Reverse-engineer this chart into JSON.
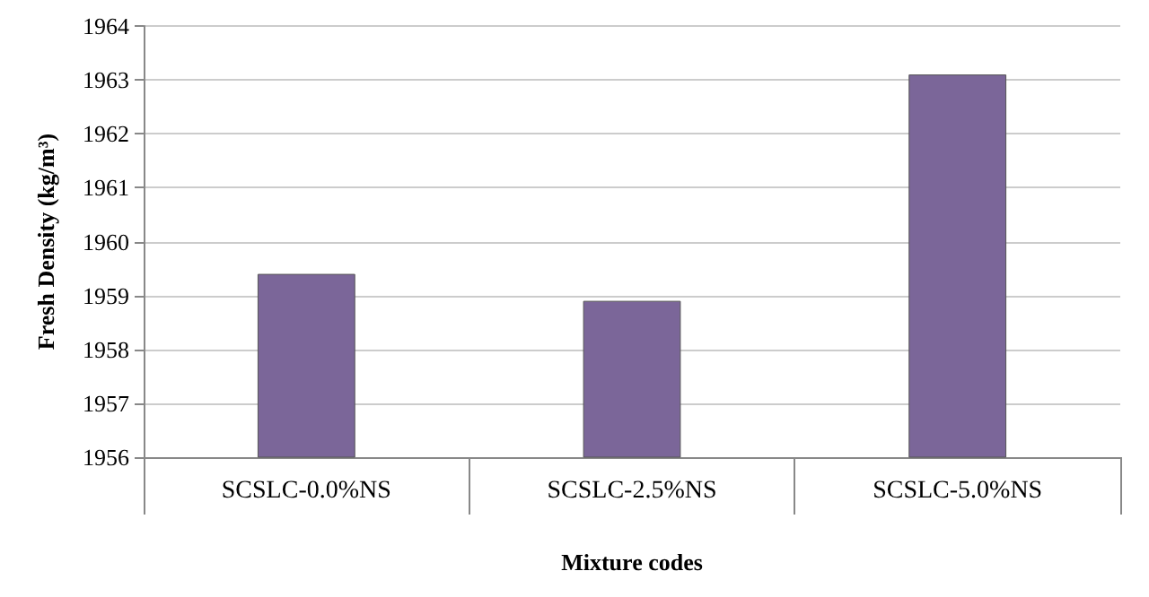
{
  "chart_data": {
    "type": "bar",
    "xlabel": "Mixture codes",
    "ylabel": "Fresh Density (kg/m³)",
    "categories": [
      "SCSLC-0.0%NS",
      "SCSLC-2.5%NS",
      "SCSLC-5.0%NS"
    ],
    "values": [
      1959.4,
      1958.9,
      1963.1
    ],
    "color": "#7b6699",
    "ylim": [
      1956,
      1964
    ],
    "yticks": [
      1956,
      1957,
      1958,
      1959,
      1960,
      1961,
      1962,
      1963,
      1964
    ],
    "grid": "y"
  }
}
